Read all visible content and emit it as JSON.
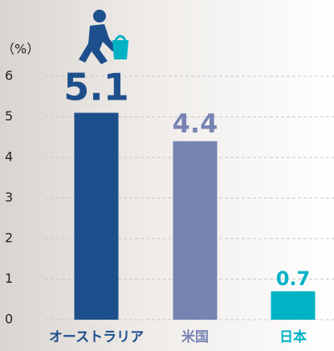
{
  "chart_data": {
    "type": "bar",
    "y_label": "（%）",
    "categories": [
      "オーストラリア",
      "米国",
      "日本"
    ],
    "values": [
      5.1,
      4.4,
      0.7
    ],
    "colors": [
      "#1e4f8d",
      "#7883b3",
      "#00b2c4"
    ],
    "ylim": [
      0,
      6
    ],
    "yticks": [
      0,
      1,
      2,
      3,
      4,
      5,
      6
    ],
    "grid": true
  }
}
